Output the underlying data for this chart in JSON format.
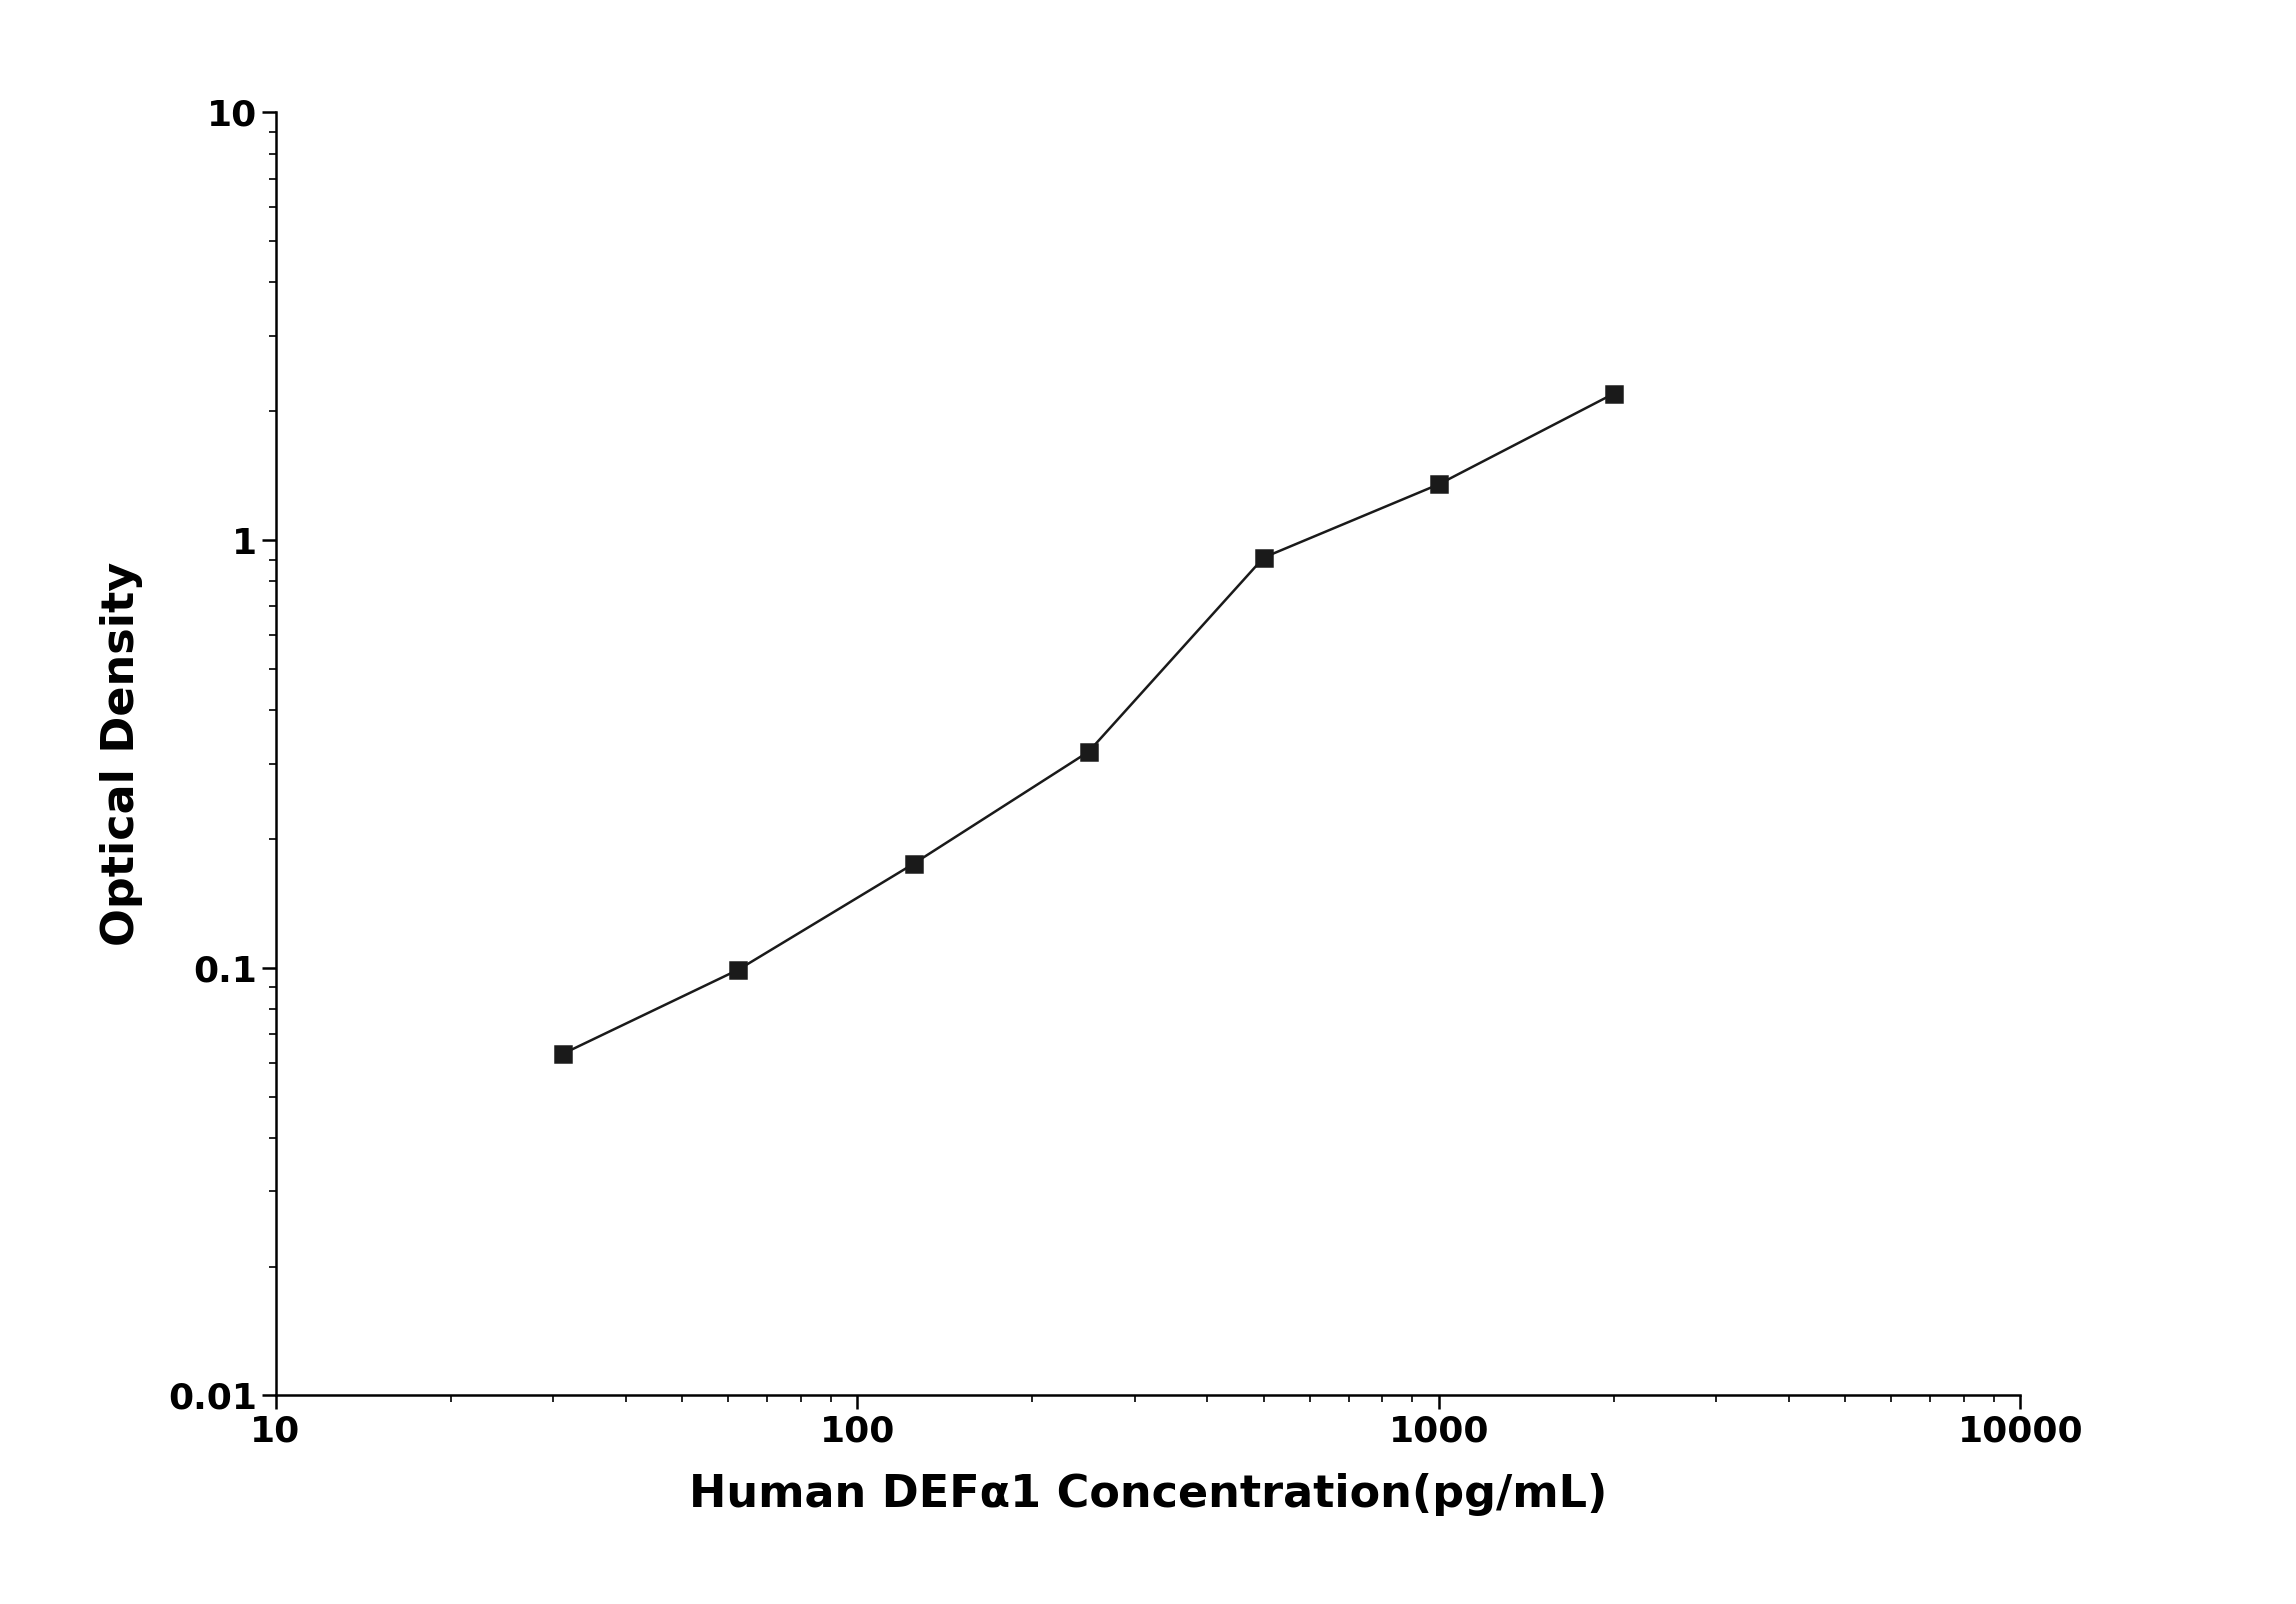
{
  "x_values": [
    31.25,
    62.5,
    125,
    250,
    500,
    1000,
    2000
  ],
  "y_values": [
    0.063,
    0.099,
    0.175,
    0.32,
    0.91,
    1.35,
    2.2
  ],
  "x_label": "Human DEFα1 Concentration(pg/mL)",
  "y_label": "Optical Density",
  "x_lim": [
    10,
    10000
  ],
  "y_lim": [
    0.01,
    10
  ],
  "x_ticks": [
    10,
    100,
    1000,
    10000
  ],
  "x_tick_labels": [
    "10",
    "100",
    "1000",
    "10000"
  ],
  "y_ticks": [
    0.01,
    0.1,
    1,
    10
  ],
  "y_tick_labels": [
    "0.01",
    "0.1",
    "1",
    "10"
  ],
  "line_color": "#1a1a1a",
  "marker": "s",
  "marker_size": 11,
  "marker_facecolor": "#1a1a1a",
  "marker_edgecolor": "#1a1a1a",
  "line_width": 1.8,
  "font_size_label": 32,
  "font_size_tick": 26,
  "background_color": "#ffffff"
}
